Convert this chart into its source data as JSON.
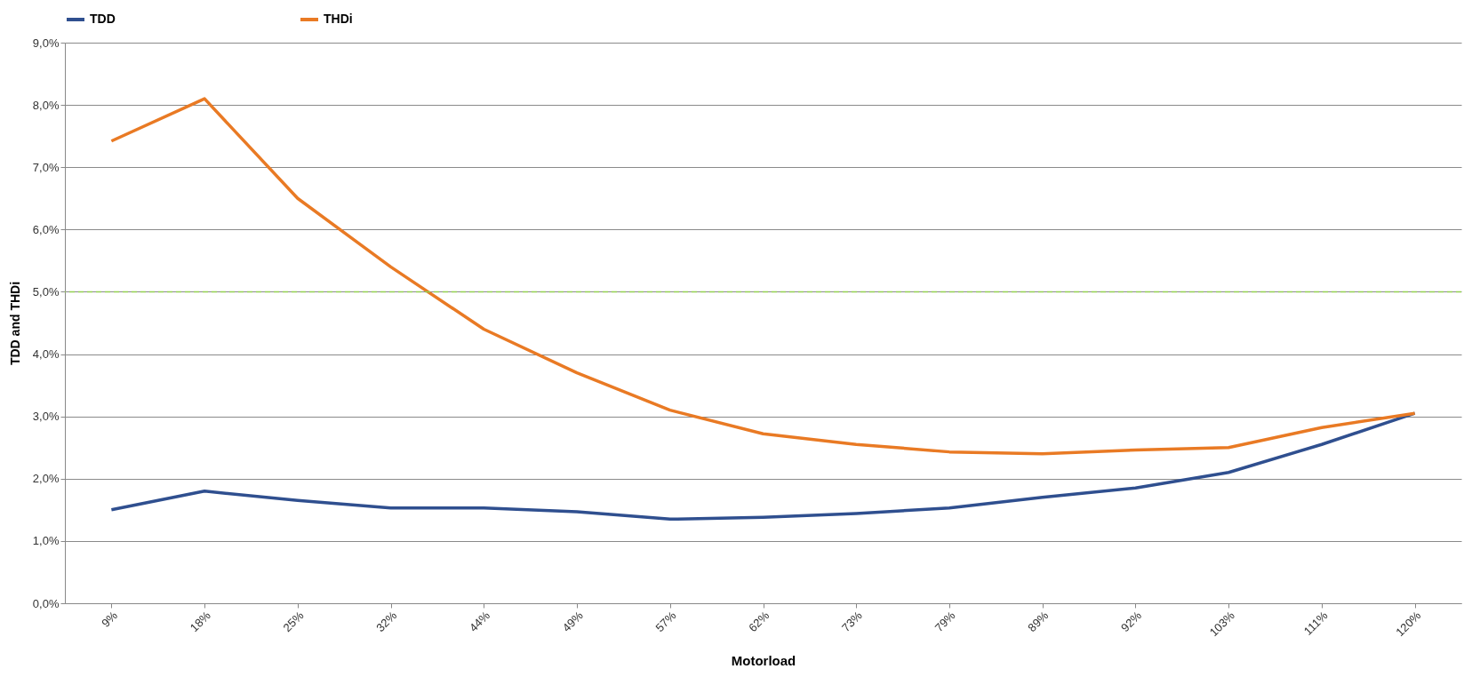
{
  "chart_data": {
    "type": "line",
    "xlabel": "Motorload",
    "ylabel": "TDD and THDi",
    "categories": [
      "9%",
      "18%",
      "25%",
      "32%",
      "44%",
      "49%",
      "57%",
      "62%",
      "73%",
      "79%",
      "89%",
      "92%",
      "103%",
      "111%",
      "120%"
    ],
    "series": [
      {
        "name": "TDD",
        "color": "#2f4f8f",
        "values": [
          1.5,
          1.8,
          1.65,
          1.53,
          1.53,
          1.47,
          1.35,
          1.38,
          1.44,
          1.53,
          1.7,
          1.85,
          2.1,
          2.55,
          3.05
        ]
      },
      {
        "name": "THDi",
        "color": "#e97a24",
        "values": [
          7.42,
          8.1,
          6.5,
          5.4,
          4.4,
          3.7,
          3.1,
          2.72,
          2.55,
          2.43,
          2.4,
          2.46,
          2.5,
          2.82,
          3.05
        ]
      }
    ],
    "ylim": [
      0,
      9
    ],
    "yticks": [
      {
        "value": 0,
        "label": "0,0%"
      },
      {
        "value": 1,
        "label": "1,0%"
      },
      {
        "value": 2,
        "label": "2,0%"
      },
      {
        "value": 3,
        "label": "3,0%"
      },
      {
        "value": 4,
        "label": "4,0%"
      },
      {
        "value": 5,
        "label": "5,0%"
      },
      {
        "value": 6,
        "label": "6,0%"
      },
      {
        "value": 7,
        "label": "7,0%"
      },
      {
        "value": 8,
        "label": "8,0%"
      },
      {
        "value": 9,
        "label": "9,0%"
      }
    ],
    "ref_lines": [
      {
        "axis": "y",
        "value": 5,
        "color": "#92d050",
        "line_style": "dashed"
      }
    ],
    "grid": "y",
    "legend": "top",
    "line_style": "solid",
    "marker": "none"
  }
}
